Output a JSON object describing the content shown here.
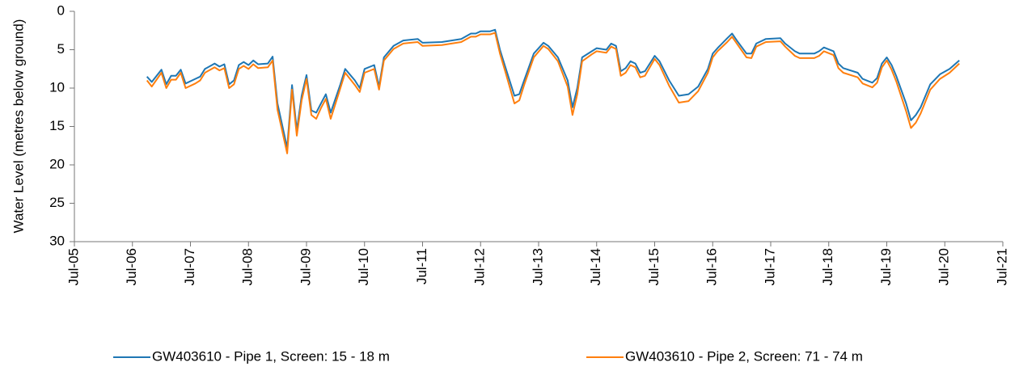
{
  "chart_data": {
    "type": "line",
    "y_label": "Water Level (metres below ground)",
    "y_inverted": true,
    "ylim": [
      0,
      30
    ],
    "yticks": [
      0,
      5,
      10,
      15,
      20,
      25,
      30
    ],
    "xlim": [
      "2005-07",
      "2021-07"
    ],
    "xticks": [
      {
        "value": "2005-07",
        "label": "Jul-05"
      },
      {
        "value": "2006-07",
        "label": "Jul-06"
      },
      {
        "value": "2007-07",
        "label": "Jul-07"
      },
      {
        "value": "2008-07",
        "label": "Jul-08"
      },
      {
        "value": "2009-07",
        "label": "Jul-09"
      },
      {
        "value": "2010-07",
        "label": "Jul-10"
      },
      {
        "value": "2011-07",
        "label": "Jul-11"
      },
      {
        "value": "2012-07",
        "label": "Jul-12"
      },
      {
        "value": "2013-07",
        "label": "Jul-13"
      },
      {
        "value": "2014-07",
        "label": "Jul-14"
      },
      {
        "value": "2015-07",
        "label": "Jul-15"
      },
      {
        "value": "2016-07",
        "label": "Jul-16"
      },
      {
        "value": "2017-07",
        "label": "Jul-17"
      },
      {
        "value": "2018-07",
        "label": "Jul-18"
      },
      {
        "value": "2019-07",
        "label": "Jul-19"
      },
      {
        "value": "2020-07",
        "label": "Jul-20"
      },
      {
        "value": "2021-07",
        "label": "Jul-21"
      }
    ],
    "grid": false,
    "legend": "bottom",
    "x": [
      "2006-10",
      "2006-11",
      "2007-01",
      "2007-02",
      "2007-03",
      "2007-04",
      "2007-05",
      "2007-06",
      "2007-08",
      "2007-09",
      "2007-10",
      "2007-12",
      "2008-01",
      "2008-02",
      "2008-03",
      "2008-04",
      "2008-05",
      "2008-06",
      "2008-07",
      "2008-08",
      "2008-09",
      "2008-11",
      "2008-12",
      "2009-01",
      "2009-03",
      "2009-04",
      "2009-05",
      "2009-06",
      "2009-07",
      "2009-08",
      "2009-09",
      "2009-10",
      "2009-11",
      "2009-12",
      "2010-02",
      "2010-03",
      "2010-05",
      "2010-06",
      "2010-07",
      "2010-09",
      "2010-10",
      "2010-11",
      "2011-01",
      "2011-03",
      "2011-06",
      "2011-07",
      "2011-11",
      "2012-03",
      "2012-05",
      "2012-06",
      "2012-07",
      "2012-09",
      "2012-10",
      "2012-11",
      "2012-12",
      "2013-02",
      "2013-03",
      "2013-04",
      "2013-06",
      "2013-08",
      "2013-09",
      "2013-11",
      "2014-01",
      "2014-02",
      "2014-03",
      "2014-04",
      "2014-06",
      "2014-07",
      "2014-09",
      "2014-10",
      "2014-11",
      "2014-12",
      "2015-01",
      "2015-02",
      "2015-03",
      "2015-04",
      "2015-05",
      "2015-07",
      "2015-08",
      "2015-10",
      "2015-12",
      "2016-02",
      "2016-04",
      "2016-06",
      "2016-07",
      "2016-08",
      "2016-10",
      "2016-11",
      "2016-12",
      "2017-02",
      "2017-03",
      "2017-04",
      "2017-06",
      "2017-09",
      "2017-10",
      "2017-12",
      "2018-01",
      "2018-04",
      "2018-05",
      "2018-06",
      "2018-08",
      "2018-09",
      "2018-10",
      "2019-01",
      "2019-02",
      "2019-04",
      "2019-05",
      "2019-06",
      "2019-07",
      "2019-08",
      "2019-09",
      "2019-11",
      "2019-12",
      "2020-01",
      "2020-02",
      "2020-04",
      "2020-06",
      "2020-08",
      "2020-10"
    ],
    "series": [
      {
        "name": "GW403610 - Pipe 1, Screen: 15 - 18 m",
        "color": "#1f77b4",
        "values": [
          8.5,
          9.2,
          7.6,
          9.5,
          8.4,
          8.4,
          7.6,
          9.4,
          8.8,
          8.5,
          7.5,
          6.8,
          7.2,
          6.9,
          9.5,
          9.0,
          7.0,
          6.6,
          7.0,
          6.4,
          6.9,
          6.8,
          5.9,
          12.0,
          17.8,
          9.6,
          15.5,
          11.0,
          8.3,
          12.9,
          13.2,
          12.0,
          10.8,
          13.2,
          9.5,
          7.5,
          9.0,
          10.0,
          7.5,
          7.0,
          9.8,
          6.0,
          4.5,
          3.8,
          3.6,
          4.1,
          4.0,
          3.6,
          2.9,
          2.9,
          2.6,
          2.6,
          2.4,
          5.0,
          7.0,
          11.0,
          10.8,
          9.0,
          5.5,
          4.1,
          4.5,
          6.0,
          9.0,
          12.5,
          10.0,
          6.0,
          5.2,
          4.8,
          5.0,
          4.2,
          4.5,
          7.8,
          7.4,
          6.5,
          6.8,
          8.0,
          7.8,
          5.8,
          6.5,
          9.0,
          11.0,
          10.8,
          9.8,
          7.5,
          5.5,
          4.8,
          3.5,
          2.9,
          3.8,
          5.5,
          5.5,
          4.2,
          3.6,
          3.5,
          4.2,
          5.2,
          5.5,
          5.5,
          5.2,
          4.7,
          5.2,
          6.8,
          7.4,
          8.0,
          8.8,
          9.3,
          8.7,
          6.8,
          6.0,
          7.0,
          8.5,
          12.0,
          14.2,
          13.5,
          12.5,
          9.5,
          8.2,
          7.5,
          6.4
        ]
      },
      {
        "name": "GW403610 - Pipe 2, Screen: 71 - 74 m",
        "color": "#ff7f0e",
        "values": [
          9.0,
          9.8,
          8.0,
          10.0,
          8.9,
          8.9,
          8.0,
          10.0,
          9.4,
          9.0,
          8.0,
          7.3,
          7.7,
          7.4,
          10.0,
          9.5,
          7.5,
          7.1,
          7.5,
          6.9,
          7.4,
          7.3,
          6.4,
          12.8,
          18.5,
          10.2,
          16.2,
          11.6,
          8.8,
          13.5,
          14.0,
          12.6,
          11.4,
          14.0,
          10.0,
          8.0,
          9.6,
          10.5,
          8.0,
          7.5,
          10.2,
          6.4,
          4.9,
          4.2,
          4.0,
          4.5,
          4.4,
          4.0,
          3.3,
          3.3,
          3.0,
          3.0,
          2.8,
          5.5,
          7.6,
          12.0,
          11.6,
          9.6,
          6.0,
          4.5,
          4.9,
          6.5,
          9.8,
          13.5,
          10.8,
          6.5,
          5.6,
          5.2,
          5.4,
          4.6,
          4.9,
          8.4,
          8.0,
          7.0,
          7.3,
          8.6,
          8.4,
          6.2,
          7.0,
          9.7,
          11.9,
          11.7,
          10.4,
          8.0,
          6.0,
          5.2,
          4.0,
          3.3,
          4.2,
          6.0,
          6.1,
          4.6,
          4.0,
          3.9,
          4.6,
          5.8,
          6.1,
          6.1,
          5.8,
          5.2,
          5.7,
          7.4,
          8.0,
          8.6,
          9.4,
          9.9,
          9.3,
          7.3,
          6.4,
          7.6,
          9.2,
          13.0,
          15.2,
          14.5,
          13.3,
          10.2,
          8.8,
          8.0,
          6.8
        ]
      }
    ]
  }
}
